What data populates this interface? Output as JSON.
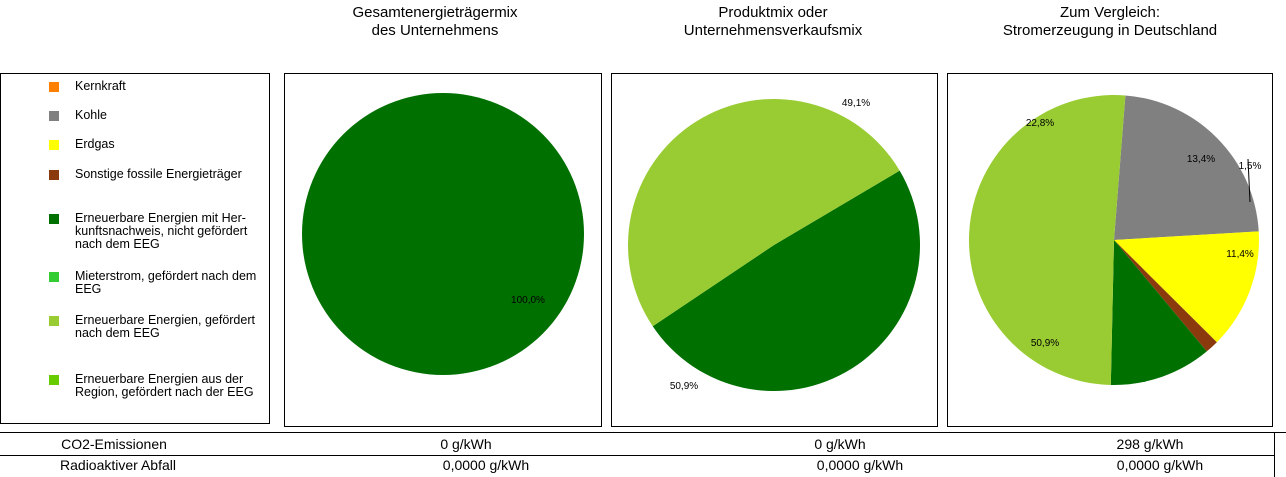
{
  "headers": {
    "company_mix": [
      "Gesamtenergieträgermix",
      "des Unternehmens"
    ],
    "product_mix": [
      "Produktmix oder",
      "Unternehmensverkaufsmix"
    ],
    "germany_mix": [
      "Zum Vergleich:",
      "Stromerzeugung in Deutschland"
    ]
  },
  "legend": [
    {
      "label": "Kernkraft",
      "color": "#ff7f00"
    },
    {
      "label": "Kohle",
      "color": "#808080"
    },
    {
      "label": "Erdgas",
      "color": "#ffff00"
    },
    {
      "label": "Sonstige fossile Energieträger",
      "color": "#8b3a0e"
    },
    {
      "label": "Erneuerbare Energien mit Her-kunftsnachweis, nicht gefördert nach dem EEG",
      "color": "#007000"
    },
    {
      "label": "Mieterstrom, gefördert nach dem EEG",
      "color": "#33cc33"
    },
    {
      "label": "Erneuerbare Energien, gefördert nach dem EEG",
      "color": "#99cc33"
    },
    {
      "label": "Erneuerbare Energien aus der Region, gefördert nach der EEG",
      "color": "#66cc00"
    }
  ],
  "chart_data": [
    {
      "type": "pie",
      "title": "Gesamtenergieträgermix des Unternehmens",
      "slices": [
        {
          "name": "Erneuerbare Energien mit Herkunftsnachweis, nicht gefördert nach dem EEG",
          "value": 100.0,
          "label": "100,0%",
          "color": "#007000"
        }
      ]
    },
    {
      "type": "pie",
      "title": "Produktmix oder Unternehmensverkaufsmix",
      "slices": [
        {
          "name": "Erneuerbare Energien mit Herkunftsnachweis, nicht gefördert nach dem EEG",
          "value": 49.1,
          "label": "49,1%",
          "color": "#007000"
        },
        {
          "name": "Erneuerbare Energien, gefördert nach dem EEG",
          "value": 50.9,
          "label": "50,9%",
          "color": "#99cc33"
        }
      ]
    },
    {
      "type": "pie",
      "title": "Zum Vergleich: Stromerzeugung in Deutschland",
      "slices": [
        {
          "name": "Kohle",
          "value": 22.8,
          "label": "22,8%",
          "color": "#808080"
        },
        {
          "name": "Erdgas",
          "value": 13.4,
          "label": "13,4%",
          "color": "#ffff00"
        },
        {
          "name": "Sonstige fossile Energieträger",
          "value": 1.5,
          "label": "1,5%",
          "color": "#8b3a0e"
        },
        {
          "name": "Erneuerbare Energien mit Herkunftsnachweis, nicht gefördert nach dem EEG",
          "value": 11.4,
          "label": "11,4%",
          "color": "#007000"
        },
        {
          "name": "Erneuerbare Energien, gefördert nach dem EEG",
          "value": 50.9,
          "label": "50,9%",
          "color": "#99cc33"
        }
      ]
    }
  ],
  "table": {
    "rows": [
      {
        "label": "CO2-Emissionen",
        "values": [
          "0 g/kWh",
          "0 g/kWh",
          "298 g/kWh"
        ]
      },
      {
        "label": "Radioaktiver Abfall",
        "values": [
          "0,0000 g/kWh",
          "0,0000 g/kWh",
          "0,0000 g/kWh"
        ]
      }
    ]
  }
}
